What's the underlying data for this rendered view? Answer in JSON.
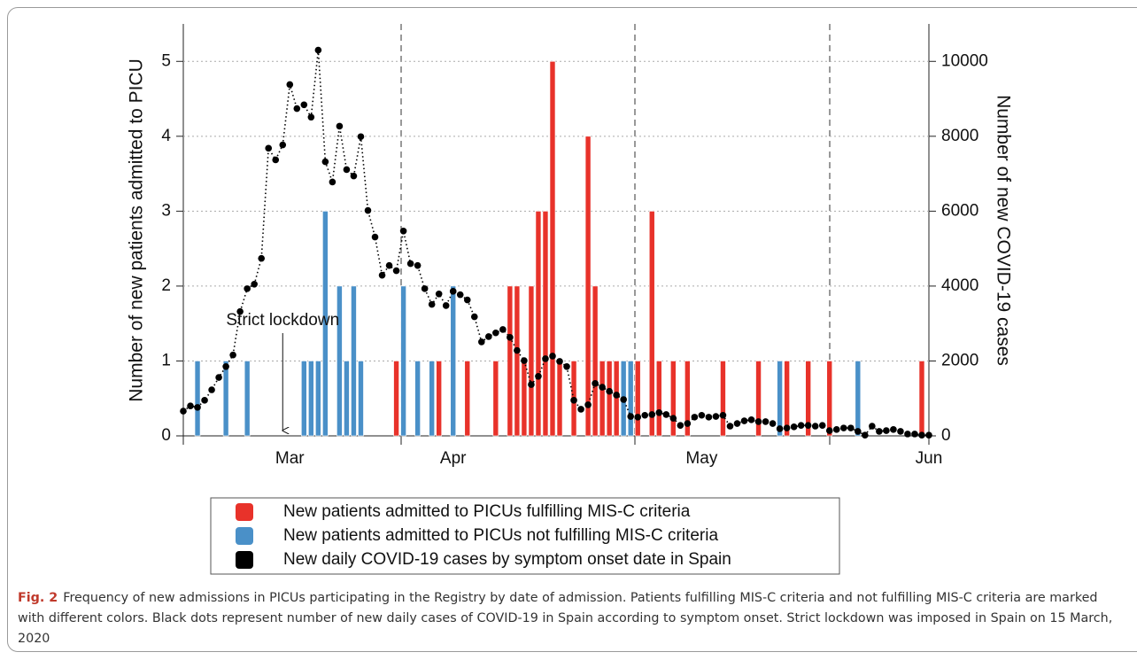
{
  "chart_data": {
    "type": "bar",
    "ylabel": "Number of new patients admitted to PICU",
    "y2label": "Number of new COVID-19 cases",
    "annotation": "Strict lockdown",
    "categories": [
      null,
      null,
      null,
      null,
      null,
      null,
      null,
      null,
      null,
      null,
      null,
      null,
      null,
      null,
      null,
      "Mar",
      null,
      null,
      null,
      null,
      null,
      null,
      null,
      null,
      null,
      null,
      null,
      null,
      null,
      null,
      null,
      null,
      null,
      null,
      null,
      null,
      null,
      null,
      "Apr",
      null,
      null,
      null,
      null,
      null,
      null,
      null,
      null,
      null,
      null,
      null,
      null,
      null,
      null,
      null,
      null,
      null,
      null,
      null,
      null,
      null,
      null,
      null,
      null,
      null,
      null,
      null,
      null,
      null,
      null,
      null,
      null,
      null,
      null,
      "May",
      null,
      null,
      null,
      null,
      null,
      null,
      null,
      null,
      null,
      null,
      null,
      null,
      null,
      null,
      null,
      null,
      null,
      null,
      null,
      null,
      null,
      null,
      null,
      null,
      null,
      null,
      null,
      null,
      null,
      null,
      null,
      "Jun"
    ],
    "ylim": [
      0,
      5.5
    ],
    "yticks": [
      0,
      1,
      2,
      3,
      4,
      5
    ],
    "y2lim": [
      0,
      11000
    ],
    "y2ticks": [
      0,
      2000,
      4000,
      6000,
      8000,
      10000
    ],
    "grid": true,
    "series": [
      {
        "name": "New patients admitted to PICUs fulfilling MIS-C criteria",
        "kind": "bar",
        "color": "#e8322a",
        "values": [
          null,
          null,
          null,
          null,
          null,
          null,
          null,
          null,
          null,
          null,
          null,
          null,
          null,
          null,
          null,
          null,
          null,
          null,
          null,
          null,
          null,
          null,
          null,
          null,
          null,
          null,
          null,
          null,
          null,
          null,
          1,
          null,
          null,
          null,
          null,
          null,
          1,
          null,
          null,
          null,
          1,
          null,
          null,
          null,
          1,
          null,
          2,
          2,
          1,
          2,
          3,
          3,
          5,
          1,
          null,
          1,
          null,
          4,
          2,
          1,
          1,
          1,
          null,
          null,
          1,
          null,
          3,
          1,
          null,
          1,
          null,
          1,
          null,
          null,
          null,
          null,
          1,
          null,
          null,
          null,
          null,
          1,
          null,
          null,
          null,
          1,
          null,
          null,
          1,
          null,
          null,
          1,
          null,
          null,
          null,
          null,
          null,
          null,
          null,
          null,
          null,
          null,
          null,
          null,
          1,
          null
        ]
      },
      {
        "name": "New patients admitted to PICUs not fulfilling MIS-C criteria",
        "kind": "bar",
        "color": "#4a90c8",
        "values": [
          null,
          null,
          1,
          null,
          null,
          null,
          1,
          null,
          null,
          1,
          null,
          null,
          null,
          null,
          null,
          null,
          null,
          1,
          1,
          1,
          3,
          null,
          2,
          1,
          2,
          1,
          null,
          null,
          null,
          null,
          null,
          2,
          null,
          1,
          null,
          1,
          null,
          null,
          2,
          null,
          null,
          null,
          null,
          null,
          null,
          null,
          null,
          null,
          null,
          null,
          null,
          null,
          null,
          null,
          null,
          null,
          null,
          null,
          null,
          null,
          null,
          null,
          1,
          1,
          null,
          null,
          null,
          null,
          null,
          null,
          null,
          null,
          null,
          null,
          null,
          null,
          null,
          null,
          null,
          null,
          null,
          null,
          null,
          null,
          1,
          null,
          null,
          null,
          null,
          null,
          null,
          null,
          null,
          null,
          null,
          1,
          null,
          null,
          null,
          null,
          null,
          null,
          null,
          null,
          null,
          null
        ]
      },
      {
        "name": "New daily COVID-19 cases by symptom onset date in Spain",
        "kind": "line",
        "axis": "y2",
        "color": "#000000",
        "values": [
          660,
          800,
          760,
          950,
          1230,
          1560,
          1850,
          2160,
          3320,
          3930,
          4050,
          4740,
          7680,
          7370,
          7770,
          9380,
          8740,
          8840,
          8510,
          10300,
          7320,
          6780,
          8270,
          7110,
          6940,
          7990,
          6020,
          5310,
          4290,
          4550,
          4410,
          5470,
          4600,
          4550,
          3930,
          3510,
          3790,
          3480,
          3860,
          3770,
          3630,
          3180,
          2510,
          2650,
          2750,
          2840,
          2630,
          2280,
          2010,
          1370,
          1590,
          2060,
          2130,
          1990,
          1850,
          950,
          710,
          830,
          1400,
          1300,
          1190,
          1090,
          970,
          520,
          500,
          550,
          570,
          620,
          570,
          470,
          280,
          330,
          500,
          550,
          500,
          520,
          550,
          260,
          330,
          400,
          430,
          380,
          380,
          330,
          190,
          210,
          240,
          280,
          280,
          260,
          280,
          140,
          170,
          210,
          210,
          120,
          20,
          260,
          120,
          140,
          170,
          120,
          50,
          50,
          20,
          20
        ]
      }
    ]
  },
  "caption": {
    "label": "Fig. 2",
    "text": "Frequency of new admissions in PICUs participating in the Registry by date of admission. Patients fulfilling MIS-C criteria and not fulfilling MIS-C criteria are marked with different colors. Black dots represent number of new daily cases of COVID-19 in Spain according to symptom onset. Strict lockdown was imposed in Spain on 15 March, 2020"
  }
}
